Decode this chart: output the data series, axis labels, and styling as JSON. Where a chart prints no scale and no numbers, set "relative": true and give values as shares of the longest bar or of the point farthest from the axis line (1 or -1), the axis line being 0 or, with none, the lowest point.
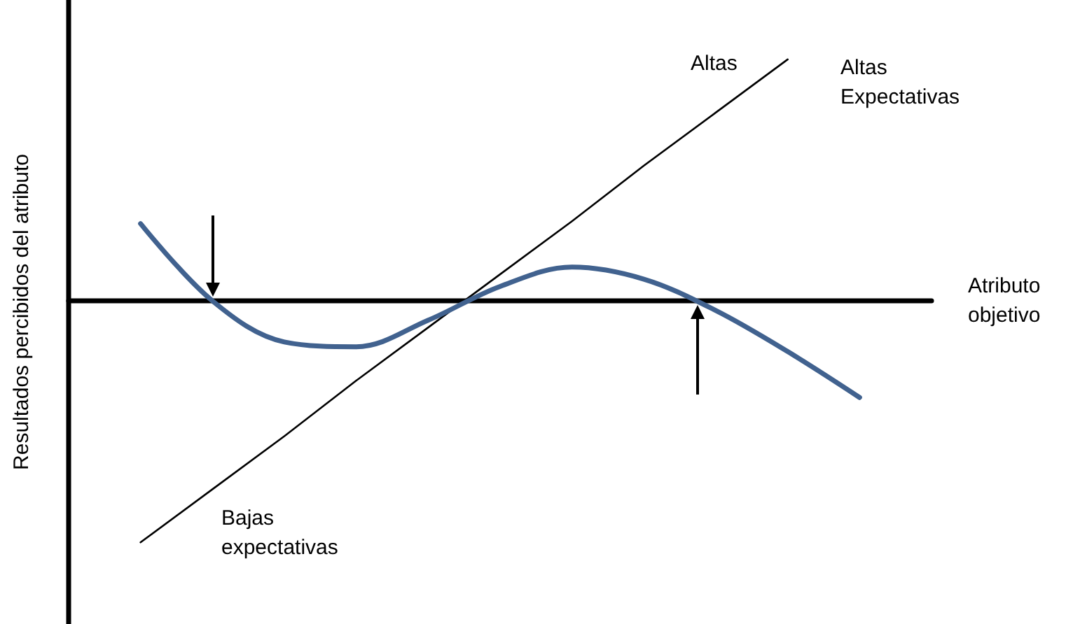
{
  "chart_data": {
    "type": "line",
    "relative": true,
    "xlabel": "Atributo\nobjetivo",
    "ylabel": "Resultados percibidos del atributo",
    "annotations": [
      "Altas",
      "Altas\nExpectativas",
      "Bajas\nexpectativas"
    ],
    "categories": [
      null,
      null,
      null,
      null,
      null,
      null,
      null,
      null,
      null,
      null,
      null,
      null,
      null
    ],
    "marker": "none",
    "line_style": "solid",
    "tick_labels": false,
    "series": [
      {
        "color": "#000000",
        "values": [
          null,
          -1,
          -0.78,
          -0.56,
          -0.33,
          -0.11,
          0.11,
          0.33,
          0.56,
          0.78,
          1,
          null,
          null
        ]
      },
      {
        "color": "#41628f",
        "values": [
          null,
          0.32,
          0,
          -0.17,
          -0.19,
          -0.08,
          0.06,
          0.14,
          0.09,
          -0.04,
          -0.21,
          -0.4,
          null
        ]
      }
    ]
  }
}
